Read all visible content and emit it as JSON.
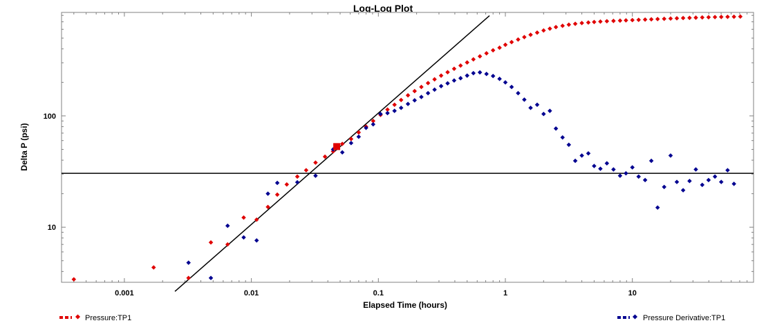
{
  "chart_data": {
    "type": "scatter",
    "title": "Log-Log Plot",
    "xlabel": "Elapsed Time (hours)",
    "ylabel": "Delta P (psi)",
    "x_scale": "log",
    "y_scale": "log",
    "xlim": [
      0.00032,
      90
    ],
    "ylim": [
      3.2,
      850
    ],
    "x_ticks": [
      0.001,
      0.01,
      0.1,
      1,
      10
    ],
    "x_tick_labels": [
      "0.001",
      "0.01",
      "0.1",
      "1",
      "10"
    ],
    "y_ticks": [
      10,
      100
    ],
    "y_tick_labels": [
      "10",
      "100"
    ],
    "grid": false,
    "legend_position": "bottom",
    "series": [
      {
        "name": "Pressure:TP1",
        "color": "#e00000",
        "marker": "diamond",
        "points": [
          [
            0.0004,
            3.4
          ],
          [
            0.0017,
            4.35
          ],
          [
            0.0032,
            3.5
          ],
          [
            0.0048,
            7.3
          ],
          [
            0.0065,
            7.0
          ],
          [
            0.0087,
            12.2
          ],
          [
            0.011,
            11.7
          ],
          [
            0.0135,
            15.2
          ],
          [
            0.016,
            19.6
          ],
          [
            0.019,
            24.2
          ],
          [
            0.023,
            28.5
          ],
          [
            0.027,
            32.5
          ],
          [
            0.032,
            38.0
          ],
          [
            0.038,
            43.0
          ],
          [
            0.044,
            48.0
          ],
          [
            0.052,
            56.0
          ],
          [
            0.061,
            62.0
          ],
          [
            0.07,
            71.0
          ],
          [
            0.08,
            80.0
          ],
          [
            0.091,
            90.0
          ],
          [
            0.104,
            102
          ],
          [
            0.118,
            114
          ],
          [
            0.134,
            126
          ],
          [
            0.151,
            139
          ],
          [
            0.171,
            153
          ],
          [
            0.193,
            167
          ],
          [
            0.218,
            182
          ],
          [
            0.246,
            197
          ],
          [
            0.277,
            213
          ],
          [
            0.312,
            230
          ],
          [
            0.351,
            247
          ],
          [
            0.395,
            265
          ],
          [
            0.444,
            283
          ],
          [
            0.5,
            302
          ],
          [
            0.56,
            322
          ],
          [
            0.63,
            343
          ],
          [
            0.71,
            365
          ],
          [
            0.8,
            388
          ],
          [
            0.9,
            410
          ],
          [
            1.0,
            435
          ],
          [
            1.12,
            460
          ],
          [
            1.26,
            485
          ],
          [
            1.41,
            510
          ],
          [
            1.58,
            535
          ],
          [
            1.78,
            560
          ],
          [
            2.0,
            585
          ],
          [
            2.24,
            608
          ],
          [
            2.5,
            628
          ],
          [
            2.82,
            645
          ],
          [
            3.16,
            660
          ],
          [
            3.55,
            672
          ],
          [
            4.0,
            682
          ],
          [
            4.5,
            690
          ],
          [
            5.0,
            697
          ],
          [
            5.6,
            703
          ],
          [
            6.3,
            708
          ],
          [
            7.1,
            713
          ],
          [
            8.0,
            717
          ],
          [
            8.9,
            721
          ],
          [
            10.0,
            725
          ],
          [
            11.2,
            729
          ],
          [
            12.6,
            733
          ],
          [
            14.1,
            737
          ],
          [
            15.8,
            741
          ],
          [
            17.8,
            745
          ],
          [
            20.0,
            749
          ],
          [
            22.4,
            753
          ],
          [
            25.1,
            757
          ],
          [
            28.2,
            760
          ],
          [
            31.6,
            763
          ],
          [
            35.5,
            766
          ],
          [
            39.8,
            769
          ],
          [
            44.7,
            772
          ],
          [
            50.1,
            774
          ],
          [
            56.2,
            776
          ],
          [
            63.1,
            778
          ],
          [
            70.8,
            780
          ]
        ]
      },
      {
        "name": "Pressure Derivative:TP1",
        "color": "#000090",
        "marker": "diamond",
        "points": [
          [
            0.0032,
            4.8
          ],
          [
            0.0048,
            3.5
          ],
          [
            0.0065,
            10.3
          ],
          [
            0.0087,
            8.1
          ],
          [
            0.011,
            7.6
          ],
          [
            0.0135,
            20.0
          ],
          [
            0.016,
            25.0
          ],
          [
            0.023,
            25.3
          ],
          [
            0.032,
            29.0
          ],
          [
            0.044,
            50.0
          ],
          [
            0.052,
            47.0
          ],
          [
            0.061,
            57.0
          ],
          [
            0.07,
            65.0
          ],
          [
            0.08,
            78.0
          ],
          [
            0.091,
            84.0
          ],
          [
            0.104,
            104
          ],
          [
            0.118,
            106
          ],
          [
            0.134,
            111
          ],
          [
            0.151,
            118
          ],
          [
            0.171,
            128
          ],
          [
            0.193,
            138
          ],
          [
            0.218,
            148
          ],
          [
            0.246,
            160
          ],
          [
            0.277,
            172
          ],
          [
            0.312,
            185
          ],
          [
            0.351,
            196
          ],
          [
            0.395,
            208
          ],
          [
            0.444,
            218
          ],
          [
            0.5,
            230
          ],
          [
            0.56,
            242
          ],
          [
            0.63,
            246
          ],
          [
            0.71,
            238
          ],
          [
            0.8,
            228
          ],
          [
            0.9,
            215
          ],
          [
            1.0,
            200
          ],
          [
            1.12,
            182
          ],
          [
            1.26,
            160
          ],
          [
            1.41,
            140
          ],
          [
            1.58,
            118
          ],
          [
            1.78,
            126
          ],
          [
            2.0,
            104
          ],
          [
            2.24,
            111
          ],
          [
            2.5,
            77
          ],
          [
            2.82,
            64
          ],
          [
            3.16,
            55
          ],
          [
            3.55,
            39.5
          ],
          [
            4.0,
            44.0
          ],
          [
            4.5,
            46.0
          ],
          [
            5.0,
            35.5
          ],
          [
            5.6,
            33.5
          ],
          [
            6.3,
            37.5
          ],
          [
            7.1,
            33.0
          ],
          [
            8.0,
            29.0
          ],
          [
            8.9,
            30.5
          ],
          [
            10.0,
            34.5
          ],
          [
            11.2,
            28.5
          ],
          [
            12.6,
            26.5
          ],
          [
            14.1,
            39.5
          ],
          [
            15.8,
            15.0
          ],
          [
            17.8,
            23.0
          ],
          [
            20.0,
            44.0
          ],
          [
            22.4,
            25.5
          ],
          [
            25.1,
            21.5
          ],
          [
            28.2,
            26.0
          ],
          [
            31.6,
            33.0
          ],
          [
            35.5,
            24.0
          ],
          [
            39.8,
            26.5
          ],
          [
            44.7,
            28.5
          ],
          [
            50.1,
            25.5
          ],
          [
            56.2,
            32.5
          ],
          [
            63.1,
            24.5
          ]
        ]
      }
    ],
    "lines": [
      {
        "kind": "unit-slope",
        "color": "#000000",
        "from": [
          0.0025,
          2.65
        ],
        "to": [
          0.75,
          795
        ]
      },
      {
        "kind": "horizontal",
        "color": "#000000",
        "y": 30.5
      }
    ],
    "highlight_point": {
      "x": 0.047,
      "y": 53.0,
      "color": "#e00000"
    }
  }
}
